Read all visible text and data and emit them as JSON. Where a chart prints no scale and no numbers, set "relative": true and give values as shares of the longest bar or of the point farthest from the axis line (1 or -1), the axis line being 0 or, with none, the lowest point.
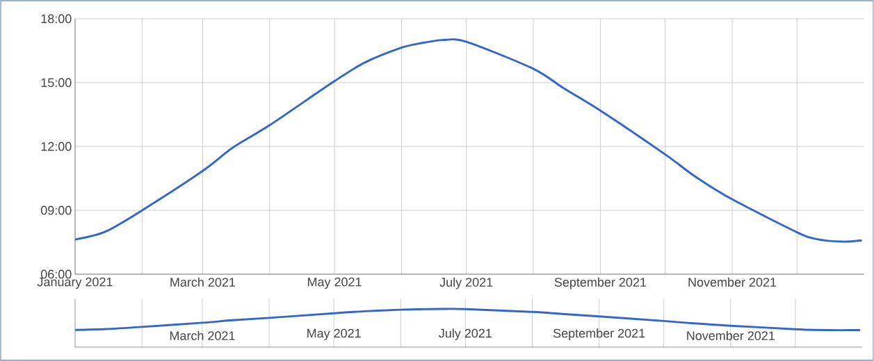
{
  "chart_data": [
    {
      "type": "line",
      "x": [
        "2021-01-01",
        "2021-01-15",
        "2021-02-01",
        "2021-03-01",
        "2021-03-15",
        "2021-04-01",
        "2021-05-01",
        "2021-05-15",
        "2021-06-01",
        "2021-06-10",
        "2021-06-20",
        "2021-07-01",
        "2021-08-01",
        "2021-08-15",
        "2021-09-01",
        "2021-10-01",
        "2021-10-15",
        "2021-11-01",
        "2021-12-01",
        "2021-12-10",
        "2021-12-22",
        "2021-12-31"
      ],
      "series": [
        {
          "color": "#3366cc",
          "values": [
            7.63,
            8.0,
            9.0,
            10.85,
            11.95,
            13.0,
            15.07,
            15.94,
            16.64,
            16.85,
            17.0,
            16.92,
            15.65,
            14.74,
            13.69,
            11.63,
            10.58,
            9.52,
            7.97,
            7.65,
            7.53,
            7.59
          ]
        }
      ],
      "xlim": [
        "2021-01-01",
        "2022-01-01"
      ],
      "xticks": [
        {
          "value": "2021-01-01",
          "label": "January 2021"
        },
        {
          "value": "2021-02-01",
          "label": null
        },
        {
          "value": "2021-03-01",
          "label": "March 2021"
        },
        {
          "value": "2021-04-01",
          "label": null
        },
        {
          "value": "2021-05-01",
          "label": "May 2021"
        },
        {
          "value": "2021-06-01",
          "label": null
        },
        {
          "value": "2021-07-01",
          "label": "July 2021"
        },
        {
          "value": "2021-08-01",
          "label": null
        },
        {
          "value": "2021-09-01",
          "label": "September 2021"
        },
        {
          "value": "2021-10-01",
          "label": null
        },
        {
          "value": "2021-11-01",
          "label": "November 2021"
        },
        {
          "value": "2021-12-01",
          "label": null
        }
      ],
      "ylim": [
        6,
        18
      ],
      "yticks": [
        {
          "value": 6,
          "label": "06:00"
        },
        {
          "value": 9,
          "label": "09:00"
        },
        {
          "value": 12,
          "label": "12:00"
        },
        {
          "value": 15,
          "label": "15:00"
        },
        {
          "value": 18,
          "label": "18:00"
        }
      ],
      "grid": true,
      "marker": "none",
      "line_style": "solid"
    },
    {
      "type": "line",
      "x": [
        "2021-01-01",
        "2021-01-15",
        "2021-02-01",
        "2021-03-01",
        "2021-03-15",
        "2021-04-01",
        "2021-05-01",
        "2021-05-15",
        "2021-06-01",
        "2021-06-10",
        "2021-06-20",
        "2021-07-01",
        "2021-08-01",
        "2021-08-15",
        "2021-09-01",
        "2021-10-01",
        "2021-10-15",
        "2021-11-01",
        "2021-12-01",
        "2021-12-10",
        "2021-12-22",
        "2021-12-31"
      ],
      "series": [
        {
          "color": "#3366cc",
          "values": [
            0.449,
            0.471,
            0.529,
            0.638,
            0.703,
            0.765,
            0.886,
            0.938,
            0.979,
            0.991,
            1,
            0.995,
            0.921,
            0.867,
            0.805,
            0.684,
            0.622,
            0.56,
            0.469,
            0.45,
            0.443,
            0.446
          ]
        }
      ],
      "relative": true,
      "xlim": [
        "2021-01-01",
        "2022-01-01"
      ],
      "xticks": [
        {
          "value": "2021-02-01",
          "label": null
        },
        {
          "value": "2021-03-01",
          "label": "March 2021"
        },
        {
          "value": "2021-04-01",
          "label": null
        },
        {
          "value": "2021-05-01",
          "label": "May 2021"
        },
        {
          "value": "2021-06-01",
          "label": null
        },
        {
          "value": "2021-07-01",
          "label": "July 2021"
        },
        {
          "value": "2021-08-01",
          "label": null
        },
        {
          "value": "2021-09-01",
          "label": "September 2021"
        },
        {
          "value": "2021-10-01",
          "label": null
        },
        {
          "value": "2021-11-01",
          "label": "November 2021"
        },
        {
          "value": "2021-12-01",
          "label": null
        }
      ],
      "tick_labels": "x",
      "grid": "x",
      "marker": "none",
      "line_style": "solid"
    }
  ]
}
